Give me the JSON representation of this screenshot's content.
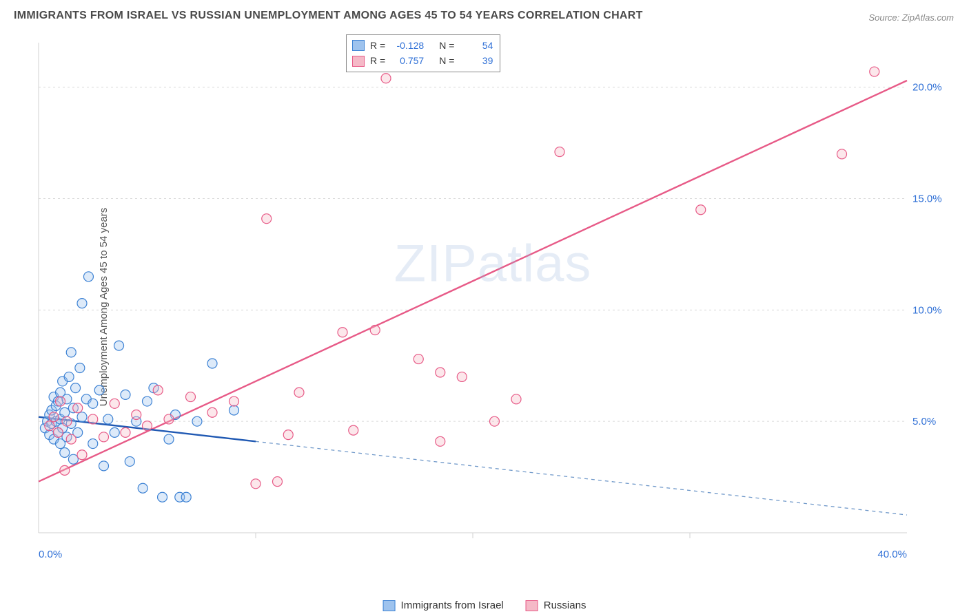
{
  "title": "IMMIGRANTS FROM ISRAEL VS RUSSIAN UNEMPLOYMENT AMONG AGES 45 TO 54 YEARS CORRELATION CHART",
  "source": "Source: ZipAtlas.com",
  "watermark": "ZIPatlas",
  "ylabel": "Unemployment Among Ages 45 to 54 years",
  "chart": {
    "type": "scatter",
    "xlim": [
      0,
      40
    ],
    "ylim": [
      0,
      22
    ],
    "x_ticks": [
      0,
      40
    ],
    "x_tick_labels": [
      "0.0%",
      "40.0%"
    ],
    "x_grid": [
      10,
      20,
      30
    ],
    "y_ticks": [
      5,
      10,
      15,
      20
    ],
    "y_tick_labels": [
      "5.0%",
      "10.0%",
      "15.0%",
      "20.0%"
    ],
    "background_color": "#ffffff",
    "grid_color": "#d8d8d8",
    "axis_color": "#d0d0d0",
    "tick_label_color": "#2e6fd6",
    "series": {
      "israel": {
        "label": "Immigrants from Israel",
        "fill": "#9ec3ee",
        "stroke": "#3d82d4",
        "r": 7,
        "R": "-0.128",
        "N": "54",
        "trend": {
          "slope": -0.11,
          "intercept": 5.2,
          "solid_xmax": 10,
          "solid_color": "#2059b3",
          "dashed_color": "#6f98c9"
        },
        "points": [
          [
            0.3,
            4.7
          ],
          [
            0.4,
            5.0
          ],
          [
            0.5,
            4.4
          ],
          [
            0.5,
            5.3
          ],
          [
            0.6,
            4.9
          ],
          [
            0.6,
            5.5
          ],
          [
            0.7,
            6.1
          ],
          [
            0.7,
            4.2
          ],
          [
            0.8,
            5.0
          ],
          [
            0.8,
            5.7
          ],
          [
            0.9,
            4.5
          ],
          [
            0.9,
            5.9
          ],
          [
            1.0,
            6.3
          ],
          [
            1.0,
            4.0
          ],
          [
            1.0,
            5.1
          ],
          [
            1.1,
            6.8
          ],
          [
            1.1,
            4.7
          ],
          [
            1.2,
            5.4
          ],
          [
            1.2,
            3.6
          ],
          [
            1.3,
            6.0
          ],
          [
            1.3,
            4.3
          ],
          [
            1.4,
            7.0
          ],
          [
            1.5,
            8.1
          ],
          [
            1.5,
            4.9
          ],
          [
            1.6,
            5.6
          ],
          [
            1.6,
            3.3
          ],
          [
            1.7,
            6.5
          ],
          [
            1.8,
            4.5
          ],
          [
            1.9,
            7.4
          ],
          [
            2.0,
            5.2
          ],
          [
            2.0,
            10.3
          ],
          [
            2.2,
            6.0
          ],
          [
            2.3,
            11.5
          ],
          [
            2.5,
            4.0
          ],
          [
            2.5,
            5.8
          ],
          [
            2.8,
            6.4
          ],
          [
            3.0,
            3.0
          ],
          [
            3.2,
            5.1
          ],
          [
            3.5,
            4.5
          ],
          [
            3.7,
            8.4
          ],
          [
            4.0,
            6.2
          ],
          [
            4.2,
            3.2
          ],
          [
            4.5,
            5.0
          ],
          [
            4.8,
            2.0
          ],
          [
            5.0,
            5.9
          ],
          [
            5.3,
            6.5
          ],
          [
            5.7,
            1.6
          ],
          [
            6.0,
            4.2
          ],
          [
            6.3,
            5.3
          ],
          [
            6.5,
            1.6
          ],
          [
            6.8,
            1.6
          ],
          [
            7.3,
            5.0
          ],
          [
            8.0,
            7.6
          ],
          [
            9.0,
            5.5
          ]
        ]
      },
      "russians": {
        "label": "Russians",
        "fill": "#f5b9c7",
        "stroke": "#e75a87",
        "r": 7,
        "R": "0.757",
        "N": "39",
        "trend": {
          "slope": 0.45,
          "intercept": 2.3,
          "solid_xmax": 40,
          "solid_color": "#e75a87",
          "dashed_color": "#e75a87"
        },
        "points": [
          [
            0.5,
            4.8
          ],
          [
            0.7,
            5.2
          ],
          [
            0.9,
            4.5
          ],
          [
            1.0,
            5.9
          ],
          [
            1.2,
            2.8
          ],
          [
            1.3,
            5.0
          ],
          [
            1.5,
            4.2
          ],
          [
            1.8,
            5.6
          ],
          [
            2.0,
            3.5
          ],
          [
            2.5,
            5.1
          ],
          [
            3.0,
            4.3
          ],
          [
            3.5,
            5.8
          ],
          [
            4.0,
            4.5
          ],
          [
            4.5,
            5.3
          ],
          [
            5.0,
            4.8
          ],
          [
            5.5,
            6.4
          ],
          [
            6.0,
            5.1
          ],
          [
            7.0,
            6.1
          ],
          [
            8.0,
            5.4
          ],
          [
            9.0,
            5.9
          ],
          [
            10.0,
            2.2
          ],
          [
            10.5,
            14.1
          ],
          [
            11.0,
            2.3
          ],
          [
            11.5,
            4.4
          ],
          [
            12.0,
            6.3
          ],
          [
            14.0,
            9.0
          ],
          [
            14.5,
            4.6
          ],
          [
            15.5,
            9.1
          ],
          [
            16.0,
            20.4
          ],
          [
            17.5,
            7.8
          ],
          [
            18.5,
            7.2
          ],
          [
            18.5,
            4.1
          ],
          [
            19.5,
            7.0
          ],
          [
            21.0,
            5.0
          ],
          [
            22.0,
            6.0
          ],
          [
            24.0,
            17.1
          ],
          [
            30.5,
            14.5
          ],
          [
            37.0,
            17.0
          ],
          [
            38.5,
            20.7
          ]
        ]
      }
    }
  },
  "stats_legend": [
    {
      "series": "israel",
      "r_label": "R =",
      "n_label": "N ="
    },
    {
      "series": "russians",
      "r_label": "R =",
      "n_label": "N ="
    }
  ]
}
